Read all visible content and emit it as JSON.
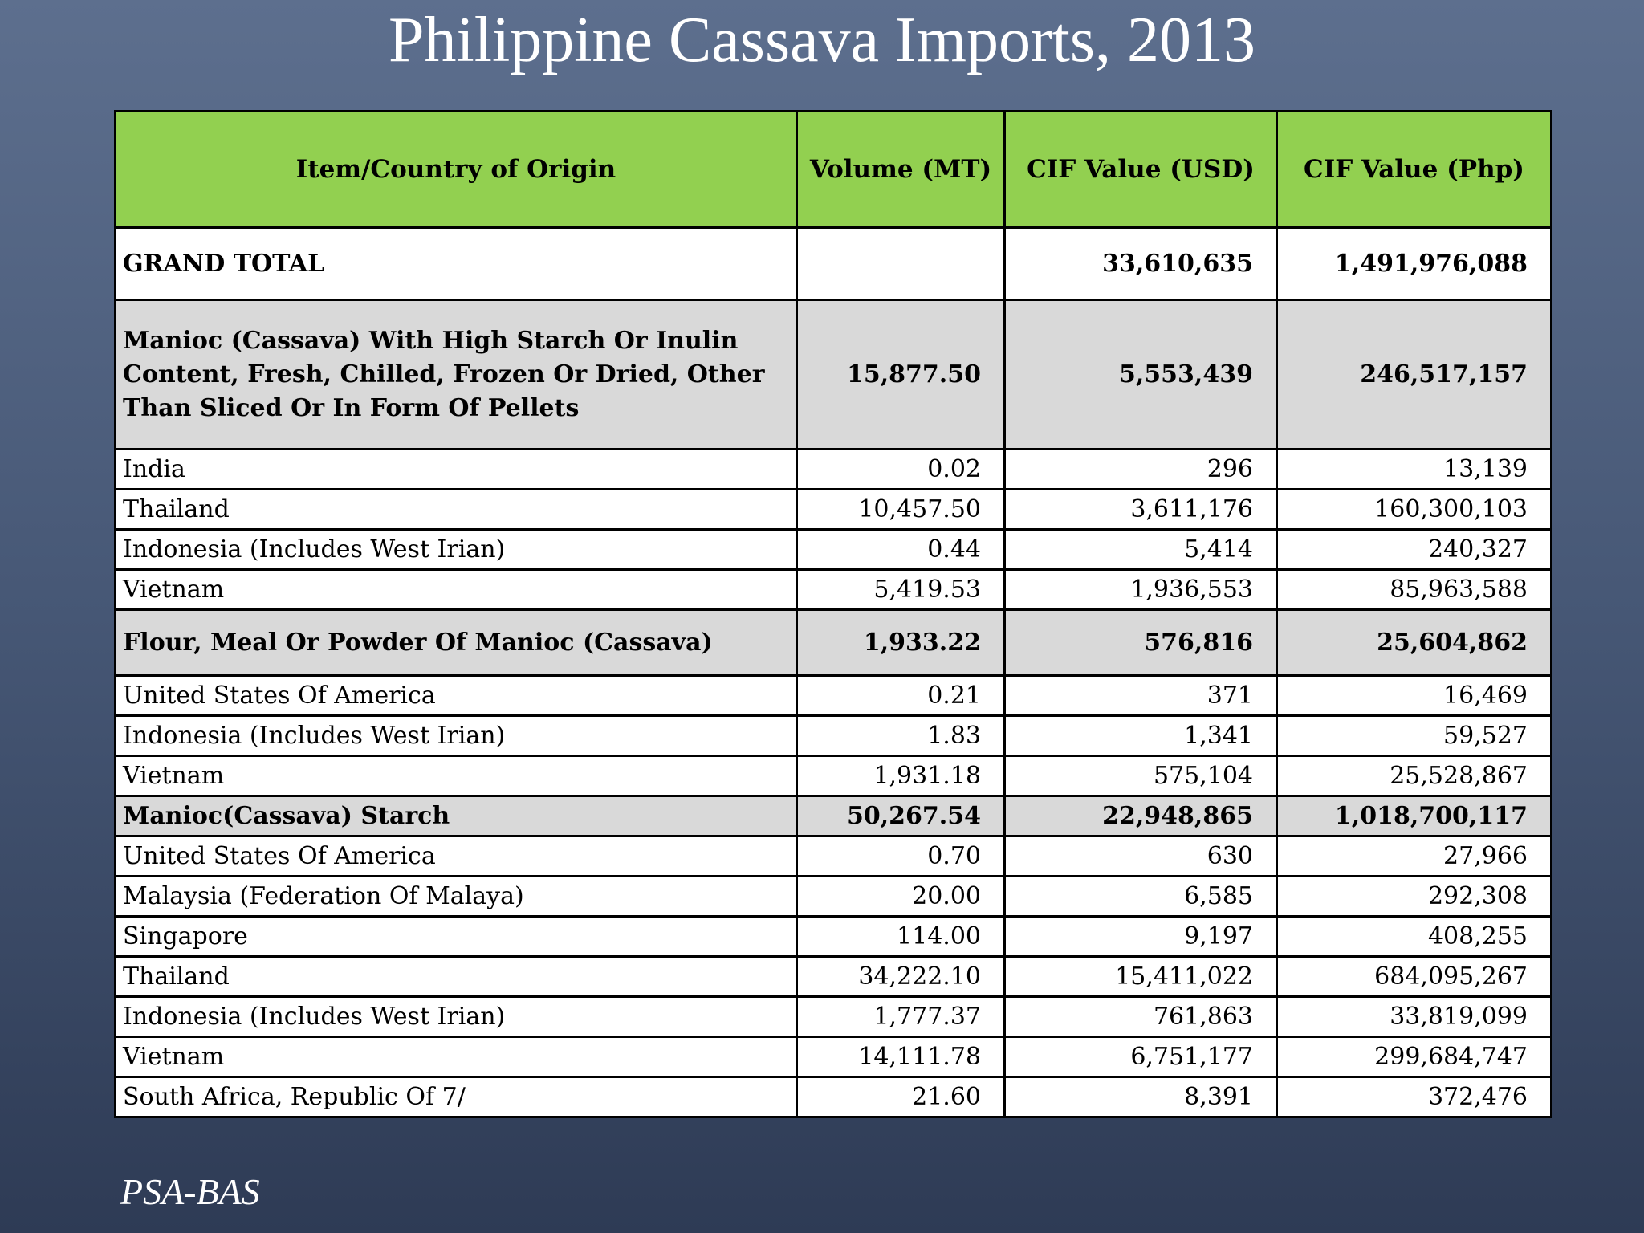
{
  "title": "Philippine Cassava Imports, 2013",
  "table": {
    "headers": [
      "Item/Country of Origin",
      "Volume (MT)",
      "CIF Value (USD)",
      "CIF Value (Php)"
    ],
    "rows": [
      [
        "GRAND TOTAL",
        null,
        "33,610,635",
        "1,491,976,088"
      ],
      [
        "Manioc (Cassava) With High Starch Or Inulin Content, Fresh, Chilled, Frozen Or Dried, Other Than Sliced Or In Form Of Pellets",
        "15,877.50",
        "5,553,439",
        "246,517,157"
      ],
      [
        "India",
        "0.02",
        "296",
        "13,139"
      ],
      [
        "Thailand",
        "10,457.50",
        "3,611,176",
        "160,300,103"
      ],
      [
        "Indonesia (Includes West Irian)",
        "0.44",
        "5,414",
        "240,327"
      ],
      [
        "Vietnam",
        "5,419.53",
        "1,936,553",
        "85,963,588"
      ],
      [
        "Flour, Meal Or Powder Of Manioc (Cassava)",
        "1,933.22",
        "576,816",
        "25,604,862"
      ],
      [
        "United States Of America",
        "0.21",
        "371",
        "16,469"
      ],
      [
        "Indonesia (Includes West Irian)",
        "1.83",
        "1,341",
        "59,527"
      ],
      [
        "Vietnam",
        "1,931.18",
        "575,104",
        "25,528,867"
      ],
      [
        "Manioc(Cassava) Starch",
        "50,267.54",
        "22,948,865",
        "1,018,700,117"
      ],
      [
        "United States Of America",
        "0.70",
        "630",
        "27,966"
      ],
      [
        "Malaysia (Federation Of Malaya)",
        "20.00",
        "6,585",
        "292,308"
      ],
      [
        "Singapore",
        "114.00",
        "9,197",
        "408,255"
      ],
      [
        "Thailand",
        "34,222.10",
        "15,411,022",
        "684,095,267"
      ],
      [
        "Indonesia (Includes West Irian)",
        "1,777.37",
        "761,863",
        "33,819,099"
      ],
      [
        "Vietnam",
        "14,111.78",
        "6,751,177",
        "299,684,747"
      ],
      [
        "South Africa, Republic Of 7/",
        "21.60",
        "8,391",
        "372,476"
      ]
    ]
  },
  "footer": "PSA-BAS"
}
